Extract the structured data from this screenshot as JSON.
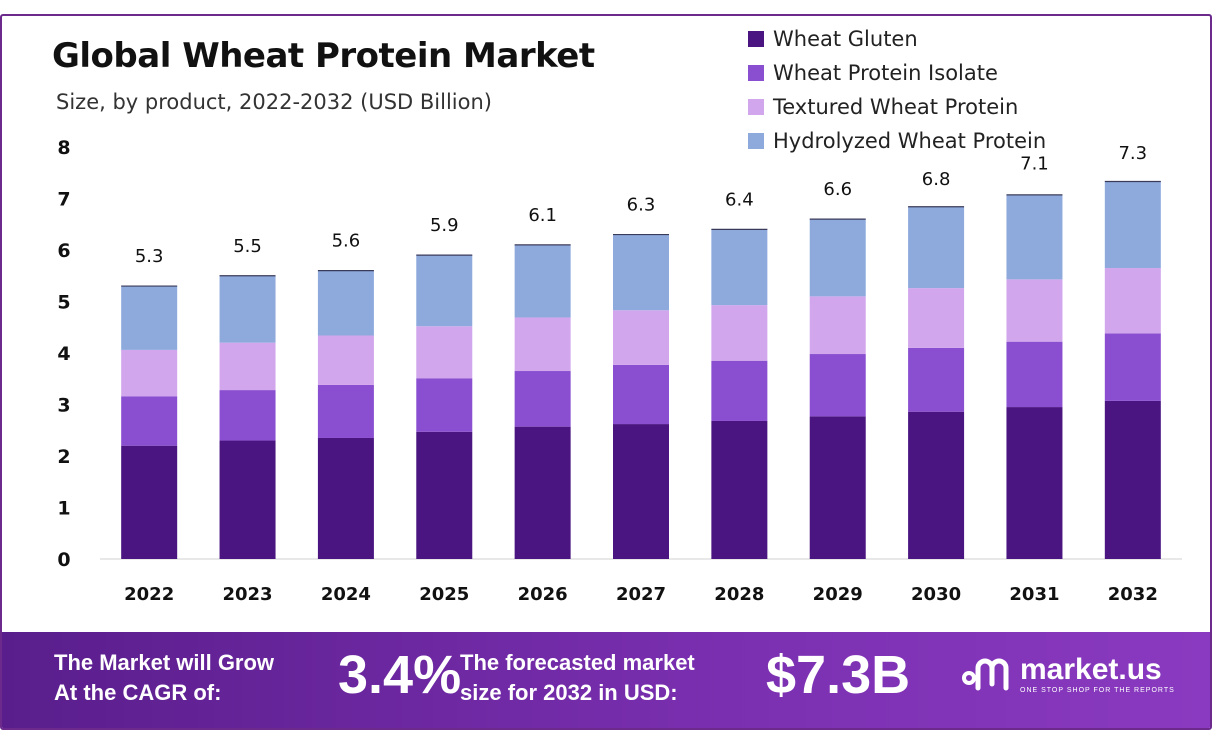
{
  "chart_data": {
    "type": "bar",
    "stacked": true,
    "title": "Global Wheat Protein Market",
    "subtitle": "Size, by product, 2022-2032 (USD Billion)",
    "categories": [
      "2022",
      "2023",
      "2024",
      "2025",
      "2026",
      "2027",
      "2028",
      "2029",
      "2030",
      "2031",
      "2032"
    ],
    "series": [
      {
        "name": "Wheat Gluten",
        "color": "#4a1580",
        "values": [
          2.2,
          2.3,
          2.35,
          2.47,
          2.57,
          2.62,
          2.68,
          2.77,
          2.86,
          2.95,
          3.07
        ]
      },
      {
        "name": "Wheat Protein Isolate",
        "color": "#8a4fd0",
        "values": [
          0.96,
          0.98,
          1.03,
          1.04,
          1.08,
          1.15,
          1.17,
          1.21,
          1.24,
          1.27,
          1.31
        ]
      },
      {
        "name": "Textured Wheat Protein",
        "color": "#d2a6ec",
        "values": [
          0.9,
          0.92,
          0.96,
          1.01,
          1.04,
          1.06,
          1.08,
          1.12,
          1.16,
          1.21,
          1.27
        ]
      },
      {
        "name": "Hydrolyzed Wheat Protein",
        "color": "#8eaadd",
        "values": [
          1.24,
          1.3,
          1.26,
          1.38,
          1.41,
          1.47,
          1.47,
          1.5,
          1.58,
          1.64,
          1.68
        ]
      }
    ],
    "totals": [
      5.3,
      5.5,
      5.6,
      5.9,
      6.1,
      6.3,
      6.4,
      6.6,
      6.8,
      7.1,
      7.3
    ],
    "total_labels": [
      "5.3",
      "5.5",
      "5.6",
      "5.9",
      "6.1",
      "6.3",
      "6.4",
      "6.6",
      "6.8",
      "7.1",
      "7.3"
    ],
    "y_ticks": [
      "0",
      "1",
      "2",
      "3",
      "4",
      "5",
      "6",
      "7",
      "8"
    ],
    "ylim": [
      0,
      8
    ],
    "legend_position": "top-right",
    "grid": false
  },
  "banner": {
    "cagr_text_line1": "The Market will Grow",
    "cagr_text_line2": "At the CAGR of:",
    "cagr_value": "3.4%",
    "forecast_text_line1": "The forecasted market",
    "forecast_text_line2": "size for 2032 in USD:",
    "forecast_value": "$7.3B",
    "logo_name": "market.us",
    "logo_tagline": "ONE STOP SHOP FOR THE REPORTS"
  },
  "colors": {
    "frame": "#6b2a8c",
    "banner": "#6a26a0"
  }
}
